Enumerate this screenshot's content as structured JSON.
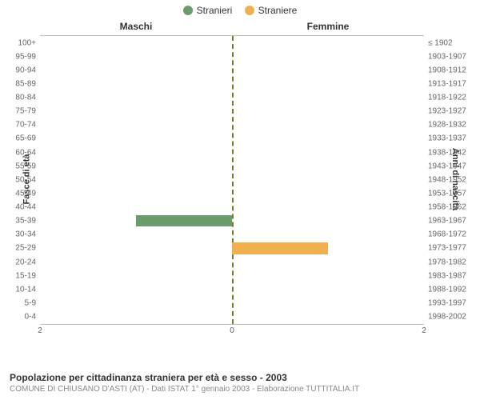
{
  "legend": {
    "male": {
      "label": "Stranieri",
      "color": "#6c9a6c"
    },
    "female": {
      "label": "Straniere",
      "color": "#f0b050"
    }
  },
  "panel_titles": {
    "left": "Maschi",
    "right": "Femmine"
  },
  "axis_labels": {
    "left": "Fasce di età",
    "right": "Anni di nascita"
  },
  "x_axis": {
    "max": 2,
    "ticks": [
      {
        "value": 2,
        "side": "left",
        "label": "2",
        "pos_pct": 0
      },
      {
        "value": 0,
        "side": "center",
        "label": "0",
        "pos_pct": 50
      },
      {
        "value": 2,
        "side": "right",
        "label": "2",
        "pos_pct": 100
      }
    ]
  },
  "center_line_color": "#7a7a2a",
  "rows": [
    {
      "left": "100+",
      "right": "≤ 1902",
      "male": 0,
      "female": 0
    },
    {
      "left": "95-99",
      "right": "1903-1907",
      "male": 0,
      "female": 0
    },
    {
      "left": "90-94",
      "right": "1908-1912",
      "male": 0,
      "female": 0
    },
    {
      "left": "85-89",
      "right": "1913-1917",
      "male": 0,
      "female": 0
    },
    {
      "left": "80-84",
      "right": "1918-1922",
      "male": 0,
      "female": 0
    },
    {
      "left": "75-79",
      "right": "1923-1927",
      "male": 0,
      "female": 0
    },
    {
      "left": "70-74",
      "right": "1928-1932",
      "male": 0,
      "female": 0
    },
    {
      "left": "65-69",
      "right": "1933-1937",
      "male": 0,
      "female": 0
    },
    {
      "left": "60-64",
      "right": "1938-1942",
      "male": 0,
      "female": 0
    },
    {
      "left": "55-59",
      "right": "1943-1947",
      "male": 0,
      "female": 0
    },
    {
      "left": "50-54",
      "right": "1948-1952",
      "male": 0,
      "female": 0
    },
    {
      "left": "45-49",
      "right": "1953-1957",
      "male": 0,
      "female": 0
    },
    {
      "left": "40-44",
      "right": "1958-1962",
      "male": 0,
      "female": 0
    },
    {
      "left": "35-39",
      "right": "1963-1967",
      "male": 1,
      "female": 0
    },
    {
      "left": "30-34",
      "right": "1968-1972",
      "male": 0,
      "female": 0
    },
    {
      "left": "25-29",
      "right": "1973-1977",
      "male": 0,
      "female": 1
    },
    {
      "left": "20-24",
      "right": "1978-1982",
      "male": 0,
      "female": 0
    },
    {
      "left": "15-19",
      "right": "1983-1987",
      "male": 0,
      "female": 0
    },
    {
      "left": "10-14",
      "right": "1988-1992",
      "male": 0,
      "female": 0
    },
    {
      "left": "5-9",
      "right": "1993-1997",
      "male": 0,
      "female": 0
    },
    {
      "left": "0-4",
      "right": "1998-2002",
      "male": 0,
      "female": 0
    }
  ],
  "caption": {
    "title": "Popolazione per cittadinanza straniera per età e sesso - 2003",
    "subtitle": "COMUNE DI CHIUSANO D'ASTI (AT) - Dati ISTAT 1° gennaio 2003 - Elaborazione TUTTITALIA.IT"
  }
}
